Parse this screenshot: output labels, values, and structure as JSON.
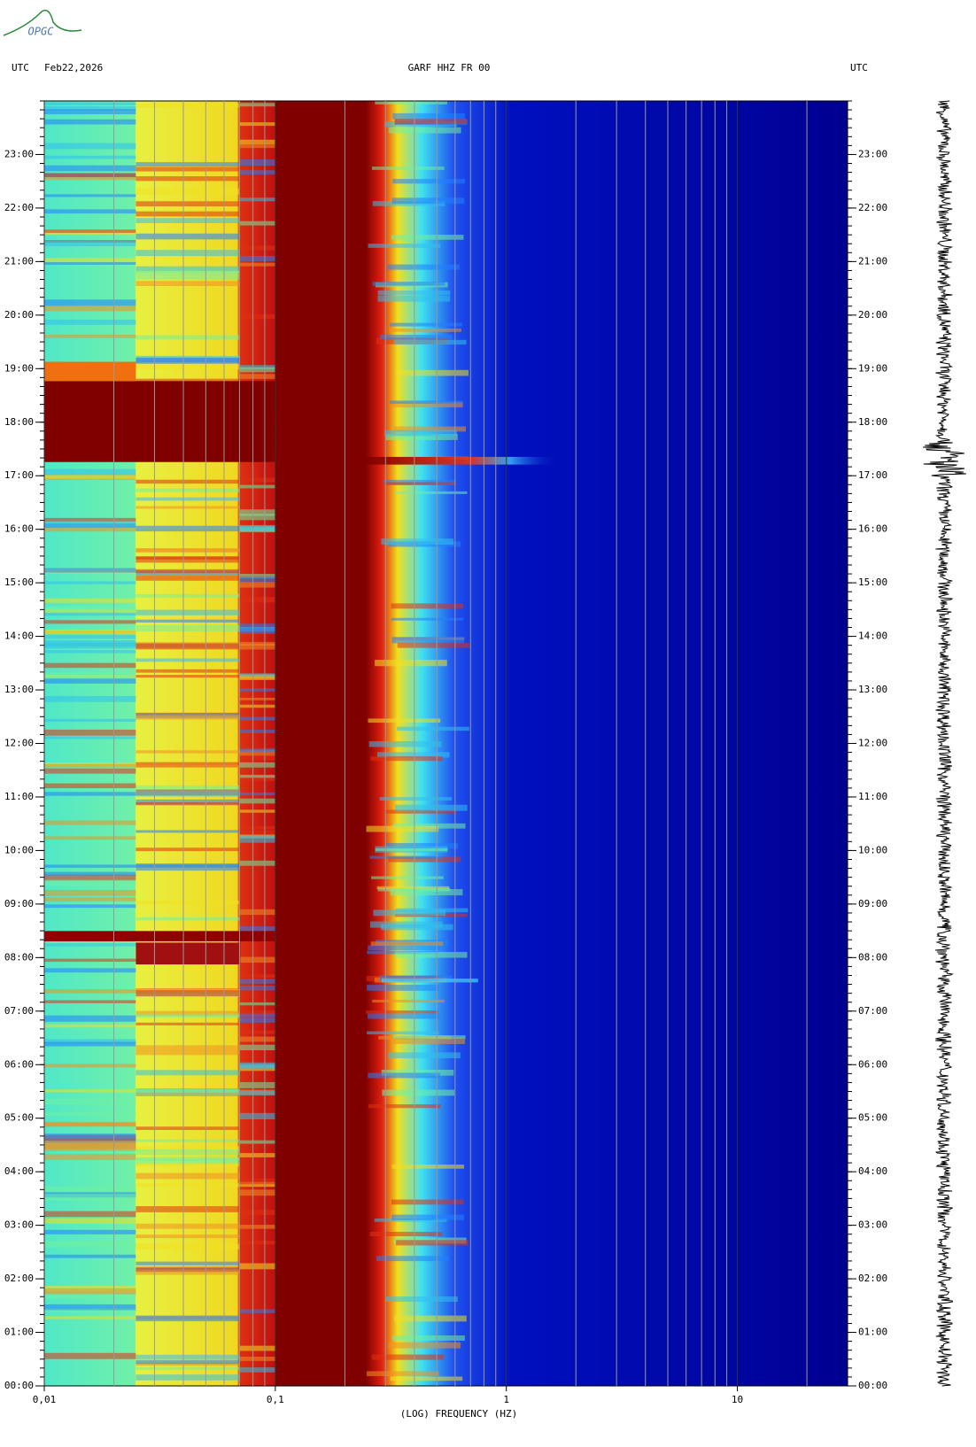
{
  "chart_data": {
    "type": "spectrogram",
    "logo": "OPGC",
    "left_header": "UTC",
    "date": "Feb22,2026",
    "title": "GARF HHZ FR 00",
    "right_header": "UTC",
    "xlabel": "(LOG) FREQUENCY (HZ)",
    "xscale": "log",
    "xlim": [
      0.01,
      30
    ],
    "xticks": [
      {
        "value": 0.01,
        "label": "0,01"
      },
      {
        "value": 0.1,
        "label": "0,1"
      },
      1,
      10
    ],
    "ylim": [
      0,
      24
    ],
    "yticks": [
      {
        "value": 0,
        "label": "00:00"
      },
      {
        "value": 1,
        "label": "01:00"
      },
      {
        "value": 2,
        "label": "02:00"
      },
      {
        "value": 3,
        "label": "03:00"
      },
      {
        "value": 4,
        "label": "04:00"
      },
      {
        "value": 5,
        "label": "05:00"
      },
      {
        "value": 6,
        "label": "06:00"
      },
      {
        "value": 7,
        "label": "07:00"
      },
      {
        "value": 8,
        "label": "08:00"
      },
      {
        "value": 9,
        "label": "09:00"
      },
      {
        "value": 10,
        "label": "10:00"
      },
      {
        "value": 11,
        "label": "11:00"
      },
      {
        "value": 12,
        "label": "12:00"
      },
      {
        "value": 13,
        "label": "13:00"
      },
      {
        "value": 14,
        "label": "14:00"
      },
      {
        "value": 15,
        "label": "15:00"
      },
      {
        "value": 16,
        "label": "16:00"
      },
      {
        "value": 17,
        "label": "17:00"
      },
      {
        "value": 18,
        "label": "18:00"
      },
      {
        "value": 19,
        "label": "19:00"
      },
      {
        "value": 20,
        "label": "20:00"
      },
      {
        "value": 21,
        "label": "21:00"
      },
      {
        "value": 22,
        "label": "22:00"
      },
      {
        "value": 23,
        "label": "23:00"
      }
    ]
  }
}
